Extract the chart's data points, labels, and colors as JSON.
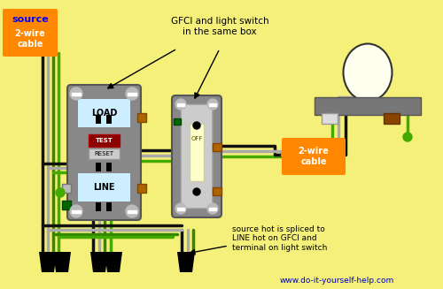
{
  "bg_color": "#F5F07A",
  "source_label": "source",
  "source_label_color": "#0000FF",
  "cable_label": "2-wire\ncable",
  "cable_label_color": "#FFFFFF",
  "cable_box_color": "#FF8800",
  "annotation1": "GFCI and light switch\nin the same box",
  "annotation2": "source hot is spliced to\nLINE hot on GFCI and\nterminal on light switch",
  "website": "www.do-it-yourself-help.com",
  "website_color": "#0000CC",
  "wire_black": "#111111",
  "wire_white": "#AAAAAA",
  "wire_green": "#338800",
  "wire_green2": "#44AA00",
  "wire_green3": "#66CC00",
  "gfci_body_color": "#888888",
  "gfci_face_load_color": "#CCEEFF",
  "gfci_face_line_color": "#CCEEFF",
  "switch_body_color": "#888888",
  "switch_face_color": "#DDDDDD",
  "lamp_base_color": "#777777",
  "lamp_bulb_color": "#FFFFF0",
  "screw_silver": "#BBBBBB",
  "screw_copper": "#AA6600",
  "screw_green": "#006600"
}
